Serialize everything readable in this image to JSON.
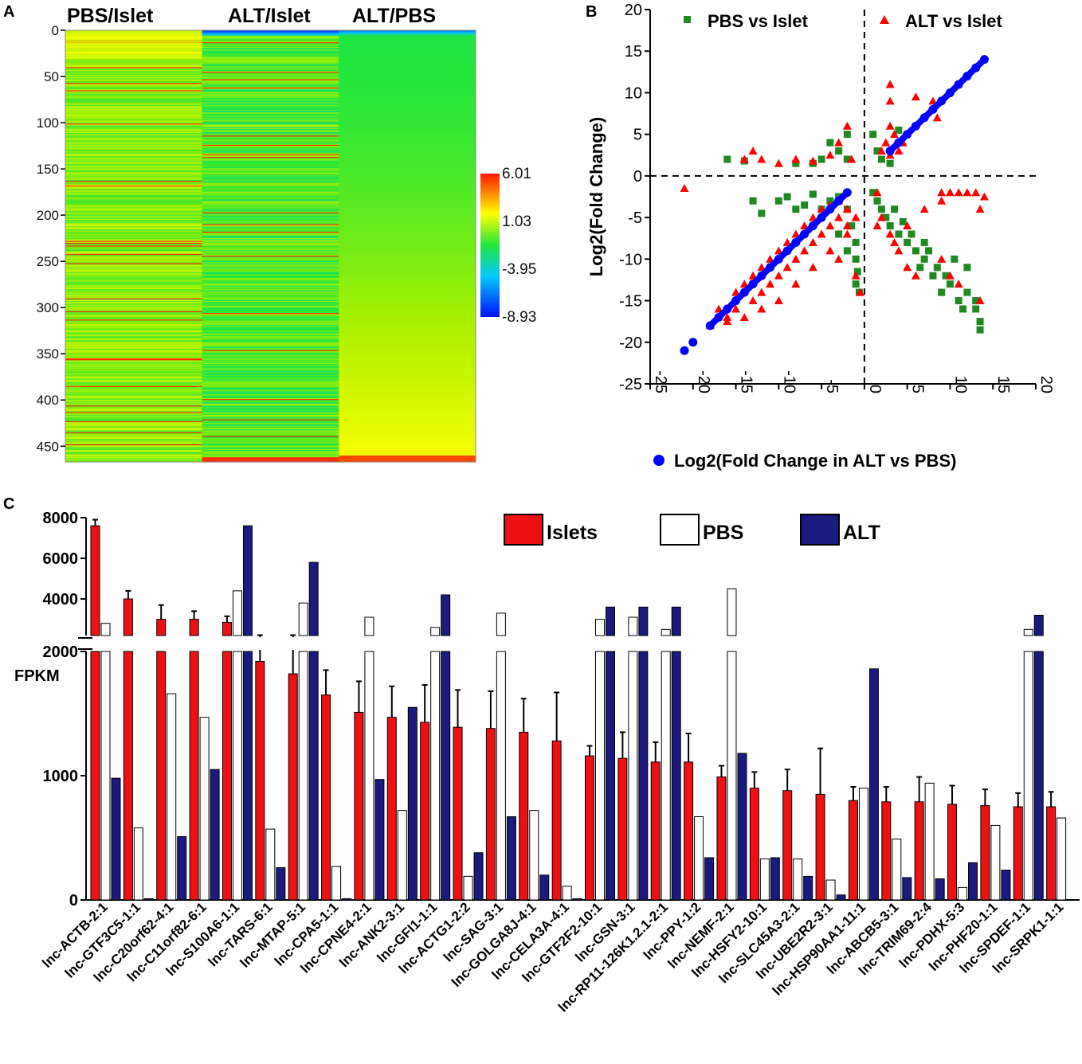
{
  "panels": {
    "a": "A",
    "b": "B",
    "c": "C"
  },
  "heatmap": {
    "columns": [
      "PBS/Islet",
      "ALT/Islet",
      "ALT/PBS"
    ],
    "row_ticks": [
      "0",
      "50",
      "100",
      "150",
      "200",
      "250",
      "300",
      "350",
      "400",
      "450"
    ],
    "row_max": 467,
    "colorbar_labels": [
      "6.01",
      "1.03",
      "-3.95",
      "-8.93"
    ],
    "colors": {
      "high": "#ff1a00",
      "mid": "#ffff00",
      "center": "#22e63c",
      "low2": "#00c8ff",
      "low": "#0010ff"
    }
  },
  "chart_data": [
    {
      "type": "scatter",
      "title": "",
      "xlabel": "Log2(Fold Change in ALT vs PBS)",
      "ylabel": "Log2(Fold Change)",
      "xlim": [
        -25,
        20
      ],
      "ylim": [
        -25,
        20
      ],
      "x_ticks": [
        "-25",
        "-20",
        "-15",
        "-10",
        "-5",
        "0",
        "5",
        "10",
        "15",
        "20"
      ],
      "y_ticks": [
        "20",
        "15",
        "10",
        "5",
        "0",
        "-5",
        "-10",
        "-15",
        "-20",
        "-25"
      ],
      "series": [
        {
          "name": "PBS vs Islet",
          "color": "#1f8a1f",
          "marker": "square",
          "points": [
            [
              -16,
              2
            ],
            [
              -14,
              1.8
            ],
            [
              -13,
              -3
            ],
            [
              -12,
              -4.5
            ],
            [
              -10,
              -3
            ],
            [
              -9,
              -2.5
            ],
            [
              -8,
              -4
            ],
            [
              -7,
              -3.5
            ],
            [
              -6,
              -2.2
            ],
            [
              -5,
              -4
            ],
            [
              -4,
              -3
            ],
            [
              -3,
              -2.5
            ],
            [
              -2,
              -4
            ],
            [
              -1.5,
              -6
            ],
            [
              -1,
              -8
            ],
            [
              -1,
              -10
            ],
            [
              -1,
              -13
            ],
            [
              -0.6,
              -14
            ],
            [
              -0.8,
              -11.5
            ],
            [
              -2,
              -9
            ],
            [
              -3,
              -7
            ],
            [
              -4,
              4
            ],
            [
              -3,
              3
            ],
            [
              -2,
              2
            ],
            [
              -2,
              5
            ],
            [
              -5,
              2
            ],
            [
              -8,
              1.5
            ],
            [
              -6,
              1.5
            ],
            [
              1,
              5
            ],
            [
              1.5,
              3
            ],
            [
              2,
              2
            ],
            [
              3,
              1.5
            ],
            [
              4,
              5.5
            ],
            [
              1,
              -2
            ],
            [
              1.5,
              -3
            ],
            [
              2,
              -4
            ],
            [
              2.5,
              -5
            ],
            [
              3,
              -6
            ],
            [
              3.5,
              -4
            ],
            [
              4,
              -7
            ],
            [
              4.5,
              -5.5
            ],
            [
              5,
              -8
            ],
            [
              5.5,
              -7
            ],
            [
              6,
              -9
            ],
            [
              7,
              -8
            ],
            [
              7,
              -10
            ],
            [
              8,
              -12
            ],
            [
              8.5,
              -11
            ],
            [
              9,
              -14
            ],
            [
              9.5,
              -12
            ],
            [
              10,
              -13
            ],
            [
              11,
              -15
            ],
            [
              11.5,
              -16
            ],
            [
              12,
              -14
            ],
            [
              13,
              -15
            ],
            [
              13,
              -16
            ],
            [
              13.5,
              -17.5
            ],
            [
              13.5,
              -18.5
            ],
            [
              7.5,
              -9
            ],
            [
              6.5,
              -11
            ],
            [
              10.5,
              -10
            ],
            [
              12,
              -11
            ]
          ]
        },
        {
          "name": "ALT vs Islet",
          "color": "#ff0000",
          "marker": "triangle",
          "points": [
            [
              -21,
              -1.5
            ],
            [
              -18,
              -18
            ],
            [
              -17,
              -16
            ],
            [
              -16,
              -17
            ],
            [
              -15,
              -16
            ],
            [
              -15,
              -14
            ],
            [
              -14,
              -13
            ],
            [
              -13,
              -12
            ],
            [
              -13,
              -15
            ],
            [
              -12,
              -11
            ],
            [
              -12,
              -14
            ],
            [
              -11,
              -10
            ],
            [
              -11,
              -13
            ],
            [
              -10,
              -9
            ],
            [
              -10,
              -12
            ],
            [
              -9,
              -8
            ],
            [
              -9,
              -11
            ],
            [
              -8,
              -7
            ],
            [
              -8,
              -10
            ],
            [
              -7,
              -6
            ],
            [
              -7,
              -9
            ],
            [
              -6,
              -5
            ],
            [
              -6,
              -8
            ],
            [
              -5,
              -4
            ],
            [
              -5,
              -7
            ],
            [
              -4,
              -3.5
            ],
            [
              -4,
              -6
            ],
            [
              -3,
              -3
            ],
            [
              -3,
              -5
            ],
            [
              -2,
              -4
            ],
            [
              -2,
              -6
            ],
            [
              -1,
              -5
            ],
            [
              -14,
              -17
            ],
            [
              -16,
              -17.5
            ],
            [
              -12,
              -16
            ],
            [
              -10,
              -15
            ],
            [
              -8,
              -13
            ],
            [
              -6,
              -11
            ],
            [
              -4,
              -9
            ],
            [
              -2,
              -7
            ],
            [
              -3,
              -10
            ],
            [
              -1,
              -12
            ],
            [
              -0.5,
              -14
            ],
            [
              -13,
              3
            ],
            [
              -14,
              2
            ],
            [
              -12,
              2
            ],
            [
              -10,
              1.5
            ],
            [
              -8,
              2
            ],
            [
              -6,
              1.8
            ],
            [
              -4,
              2.5
            ],
            [
              -2,
              6
            ],
            [
              -3,
              4
            ],
            [
              -1.5,
              2
            ],
            [
              2,
              3
            ],
            [
              2.5,
              4
            ],
            [
              3,
              6
            ],
            [
              3,
              2.5
            ],
            [
              3.5,
              5
            ],
            [
              4,
              3
            ],
            [
              4.5,
              4
            ],
            [
              3,
              9
            ],
            [
              3,
              11
            ],
            [
              6,
              9.5
            ],
            [
              8,
              9
            ],
            [
              8.5,
              7
            ],
            [
              9,
              -2
            ],
            [
              10,
              -2
            ],
            [
              11,
              -2
            ],
            [
              12,
              -2
            ],
            [
              13,
              -2
            ],
            [
              14,
              -2.5
            ],
            [
              13.5,
              -4
            ],
            [
              9,
              -3
            ],
            [
              7,
              -4
            ],
            [
              5,
              -6
            ],
            [
              3,
              -7
            ],
            [
              2,
              -5
            ],
            [
              4,
              -9
            ],
            [
              5,
              -11
            ],
            [
              6,
              -12
            ],
            [
              3.5,
              -8
            ],
            [
              1.5,
              -2
            ],
            [
              13.5,
              -15
            ],
            [
              11,
              -13
            ],
            [
              10,
              -12
            ],
            [
              9,
              -10
            ],
            [
              1.5,
              -6
            ]
          ]
        },
        {
          "name": "Log2(Fold Change in ALT vs PBS)",
          "color": "#0000ff",
          "marker": "circle",
          "points": [
            [
              -21,
              -21
            ],
            [
              -20,
              -20
            ],
            [
              -18,
              -18
            ],
            [
              -17,
              -17
            ],
            [
              -16,
              -16
            ],
            [
              -15,
              -15
            ],
            [
              -14,
              -14
            ],
            [
              -13,
              -13
            ],
            [
              -12,
              -12
            ],
            [
              -11,
              -11
            ],
            [
              -10,
              -10
            ],
            [
              -9,
              -9
            ],
            [
              -8,
              -8
            ],
            [
              -7,
              -7
            ],
            [
              -6,
              -6
            ],
            [
              -5,
              -5
            ],
            [
              -4,
              -4
            ],
            [
              -3,
              -3
            ],
            [
              -2,
              -2
            ],
            [
              3,
              3
            ],
            [
              4,
              4
            ],
            [
              5,
              5
            ],
            [
              6,
              6
            ],
            [
              7,
              7
            ],
            [
              8,
              8
            ],
            [
              9,
              9
            ],
            [
              10,
              10
            ],
            [
              11,
              11
            ],
            [
              12,
              12
            ],
            [
              13,
              13
            ],
            [
              14,
              14
            ]
          ]
        }
      ]
    },
    {
      "type": "bar",
      "title": "",
      "xlabel": "",
      "ylabel": "FPKM",
      "ylim_lower": [
        0,
        2000
      ],
      "ylim_upper": [
        2200,
        8000
      ],
      "y_ticks_lower": [
        "0",
        "1000",
        "2000"
      ],
      "y_ticks_upper": [
        "4000",
        "6000",
        "8000"
      ],
      "categories": [
        "lnc-ACTB-2:1",
        "lnc-GTF3C5-1:1",
        "lnc-C20orf62-4:1",
        "lnc-C11orf82-6:1",
        "lnc-S100A6-1:1",
        "lnc-TARS-6:1",
        "lnc-MTAP-5:1",
        "lnc-CPA5-1:1",
        "lnc-CPNE4-2:1",
        "lnc-ANK2-3:1",
        "lnc-GFI1-1:1",
        "lnc-ACTG1-2:2",
        "lnc-SAG-3:1",
        "lnc-GOLGA8J-4:1",
        "lnc-CELA3A-4:1",
        "lnc-GTF2F2-10:1",
        "lnc-GSN-3:1",
        "lnc-RP11-126K1.2.1-2:1",
        "lnc-PPY-1:2",
        "lnc-NEMF-2:1",
        "lnc-HSFY2-10:1",
        "lnc-SLC45A3-2:1",
        "lnc-UBE2R2-3:1",
        "lnc-HSP90AA1-11:1",
        "lnc-ABCB5-3:1",
        "lnc-TRIM69-2:4",
        "lnc-PDHX-5:3",
        "lnc-PHF20-1:1",
        "lnc-SPDEF-1:1",
        "lnc-SRPK1-1:1"
      ],
      "series": [
        {
          "name": "Islets",
          "color": "#ee1111",
          "values": [
            7600,
            4000,
            3000,
            3000,
            2850,
            1920,
            1820,
            1650,
            1510,
            1470,
            1430,
            1390,
            1380,
            1350,
            1280,
            1160,
            1140,
            1110,
            1110,
            990,
            900,
            880,
            850,
            800,
            790,
            790,
            770,
            760,
            750,
            750
          ],
          "errors": [
            300,
            400,
            700,
            400,
            300,
            300,
            400,
            200,
            250,
            250,
            300,
            300,
            300,
            270,
            390,
            80,
            210,
            160,
            230,
            90,
            130,
            170,
            370,
            110,
            120,
            200,
            150,
            130,
            110,
            120
          ]
        },
        {
          "name": "PBS",
          "color": "#ffffff",
          "values": [
            2800,
            580,
            1660,
            1470,
            4400,
            570,
            3800,
            270,
            3100,
            720,
            2600,
            190,
            3300,
            720,
            110,
            3000,
            3100,
            2500,
            670,
            4500,
            330,
            330,
            160,
            900,
            490,
            940,
            100,
            600,
            2500,
            660
          ]
        },
        {
          "name": "ALT",
          "color": "#1a1a80",
          "values": [
            980,
            10,
            510,
            1050,
            7600,
            260,
            5800,
            10,
            970,
            1550,
            4200,
            380,
            670,
            200,
            10,
            3600,
            3600,
            3600,
            340,
            1180,
            340,
            190,
            40,
            1860,
            180,
            170,
            300,
            240,
            3200,
            0
          ]
        }
      ]
    }
  ]
}
